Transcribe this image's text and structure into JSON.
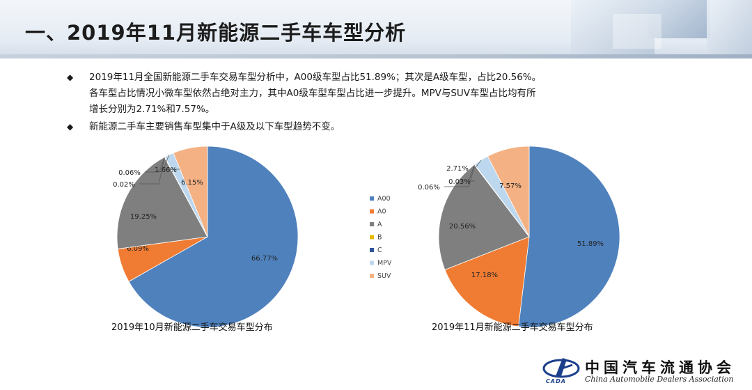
{
  "header": {
    "title": "一、2019年11月新能源二手车车型分析"
  },
  "bullets": [
    {
      "lines": [
        "2019年11月全国新能源二手车交易车型分析中，A00级车型占比51.89%；其次是A级车型，占比20.56%。",
        "各车型占比情况小微车型依然占绝对主力，其中A0级车型车型占比进一步提升。MPV与SUV车型占比均有所",
        "增长分别为2.71%和7.57%。"
      ]
    },
    {
      "lines": [
        "新能源二手车主要销售车型集中于A级及以下车型趋势不变。"
      ]
    }
  ],
  "bullet_marker": "◆",
  "chart_data": [
    {
      "type": "pie",
      "title": "2019年10月新能源二手车交易车型分布",
      "categories": [
        "A00",
        "A0",
        "A",
        "B",
        "C",
        "MPV",
        "SUV"
      ],
      "values": [
        66.77,
        6.09,
        19.25,
        0.02,
        0.06,
        1.66,
        6.15
      ],
      "labels": [
        "66.77%",
        "6.09%",
        "19.25%",
        "0.02%",
        "0.06%",
        "1.66%",
        "6.15%"
      ],
      "colors": [
        "#4f81bd",
        "#f07c33",
        "#7f7f7f",
        "#e6b800",
        "#2f5597",
        "#bdd7ee",
        "#f4b183"
      ]
    },
    {
      "type": "pie",
      "title": "2019年11月新能源二手车交易车型分布",
      "categories": [
        "A00",
        "A0",
        "A",
        "B",
        "C",
        "MPV",
        "SUV"
      ],
      "values": [
        51.89,
        17.18,
        20.56,
        0.03,
        0.06,
        2.71,
        7.57
      ],
      "labels": [
        "51.89%",
        "17.18%",
        "20.56%",
        "0.03%",
        "0.06%",
        "2.71%",
        "7.57%"
      ],
      "colors": [
        "#4f81bd",
        "#f07c33",
        "#7f7f7f",
        "#e6b800",
        "#2f5597",
        "#bdd7ee",
        "#f4b183"
      ]
    }
  ],
  "legend": {
    "placement": "center",
    "items": [
      "A00",
      "A0",
      "A",
      "B",
      "C",
      "MPV",
      "SUV"
    ]
  },
  "logo": {
    "name": "中国汽车流通协会",
    "english": "China Automobile Dealers Association",
    "abbr": "CADA"
  }
}
